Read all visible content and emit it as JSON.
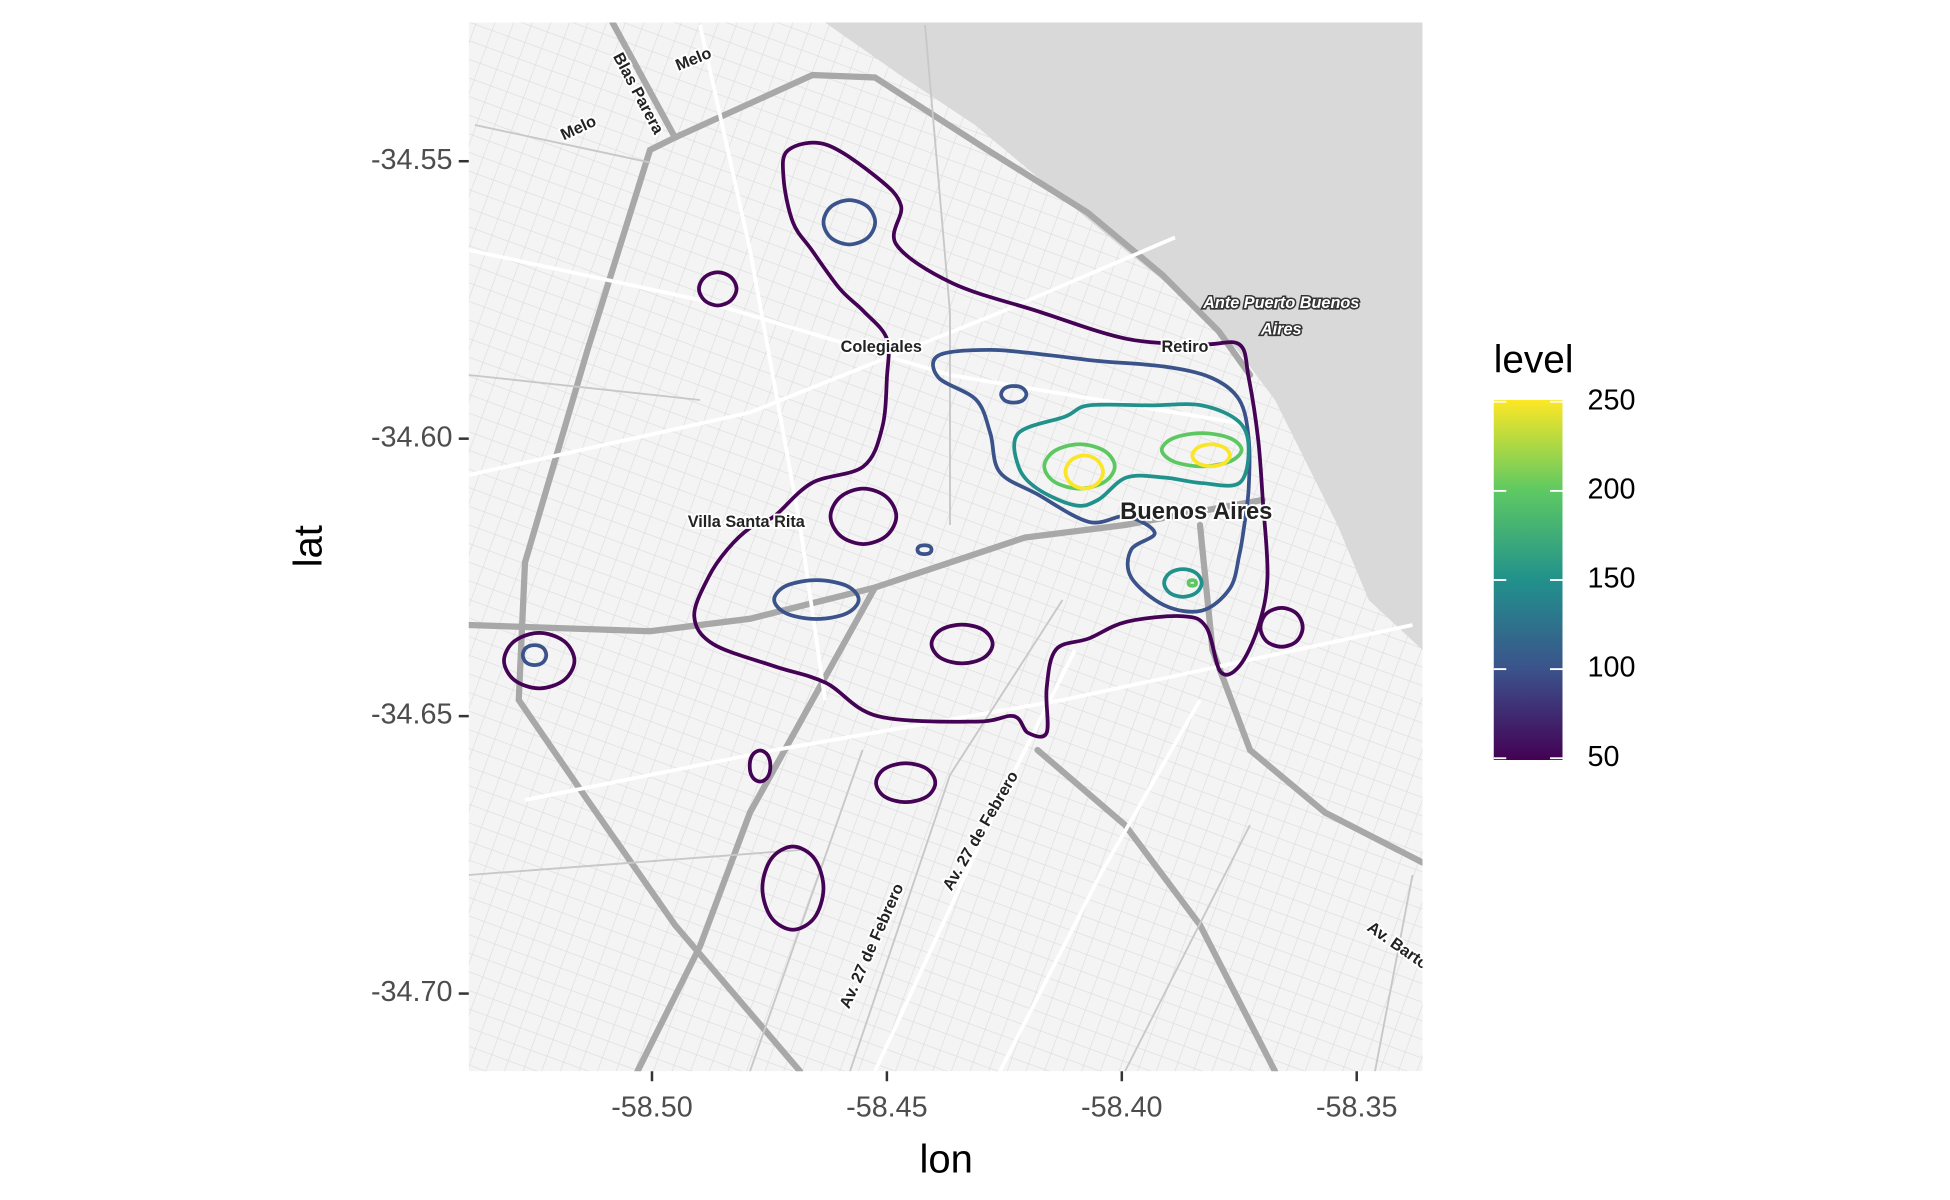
{
  "chart_data": {
    "type": "contour",
    "x_label": "lon",
    "y_label": "lat",
    "xlim": [
      -58.539,
      -58.336
    ],
    "ylim": [
      -34.714,
      -34.525
    ],
    "xticks": [
      {
        "value": -58.5,
        "label": "-58.50"
      },
      -58.45,
      {
        "value": -58.4,
        "label": "-58.40"
      },
      -58.35
    ],
    "yticks": [
      -34.55,
      {
        "value": -34.6,
        "label": "-34.60"
      },
      -34.65,
      {
        "value": -34.7,
        "label": "-34.70"
      }
    ],
    "grid": false,
    "colorbar": {
      "title": "level",
      "limits": [
        49,
        251
      ],
      "ticks": [
        50,
        100,
        150,
        200,
        250
      ],
      "colors": [
        "#440154",
        "#3b528b",
        "#21918c",
        "#5ec962",
        "#fde725"
      ]
    },
    "contours": [
      {
        "level": 50,
        "x": [
          -58.471,
          -58.463,
          -58.452,
          -58.447,
          -58.448,
          -58.436,
          -58.418,
          -58.399,
          -58.383,
          -58.375,
          -58.373,
          -58.371,
          -58.37,
          -58.369,
          -58.371,
          -58.375,
          -58.379,
          -58.382,
          -58.387,
          -58.399,
          -58.407,
          -58.414,
          -58.416,
          -58.416,
          -58.42,
          -58.423,
          -58.431,
          -58.452,
          -58.463,
          -58.474,
          -58.487,
          -58.491,
          -58.488,
          -58.484,
          -58.479,
          -58.474,
          -58.466,
          -58.455,
          -58.451,
          -58.45,
          -58.45,
          -58.455,
          -58.46,
          -58.466,
          -58.47,
          -58.472
        ],
        "y": [
          -34.548,
          -34.547,
          -34.553,
          -34.558,
          -34.565,
          -34.572,
          -34.577,
          -34.582,
          -34.583,
          -34.583,
          -34.589,
          -34.6,
          -34.611,
          -34.625,
          -34.634,
          -34.641,
          -34.642,
          -34.634,
          -34.632,
          -34.633,
          -34.636,
          -34.638,
          -34.645,
          -34.653,
          -34.653,
          -34.65,
          -34.651,
          -34.65,
          -34.644,
          -34.641,
          -34.637,
          -34.632,
          -34.625,
          -34.62,
          -34.616,
          -34.614,
          -34.608,
          -34.605,
          -34.598,
          -34.589,
          -34.582,
          -34.577,
          -34.573,
          -34.566,
          -34.561,
          -34.553
        ]
      },
      {
        "level": 50,
        "x": [
          -58.482,
          -58.4832,
          -58.486,
          -58.4888,
          -58.49,
          -58.4888,
          -58.486,
          -58.4832
        ],
        "y": [
          -34.573,
          -34.5709,
          -34.57,
          -34.5709,
          -34.573,
          -34.5751,
          -34.576,
          -34.5751
        ]
      },
      {
        "level": 50,
        "x": [
          -58.448,
          -58.4501,
          -58.455,
          -58.4599,
          -58.462,
          -58.4599,
          -58.455,
          -58.4501
        ],
        "y": [
          -34.614,
          -34.6105,
          -34.609,
          -34.6105,
          -34.614,
          -34.6175,
          -34.619,
          -34.6175
        ]
      },
      {
        "level": 50,
        "x": [
          -58.4275,
          -58.4294,
          -58.434,
          -58.4386,
          -58.4405,
          -58.4386,
          -58.434,
          -58.4294
        ],
        "y": [
          -34.637,
          -34.6345,
          -34.6335,
          -34.6345,
          -34.637,
          -34.6395,
          -34.6405,
          -34.6395
        ]
      },
      {
        "level": 50,
        "x": [
          -58.5165,
          -58.5187,
          -58.524,
          -58.5293,
          -58.5315,
          -58.5293,
          -58.524,
          -58.5187
        ],
        "y": [
          -34.64,
          -34.6365,
          -34.635,
          -34.6365,
          -34.64,
          -34.6435,
          -34.645,
          -34.6435
        ]
      },
      {
        "level": 50,
        "x": [
          -58.3615,
          -58.3628,
          -58.366,
          -58.3692,
          -58.3705,
          -58.3692,
          -58.366,
          -58.3628
        ],
        "y": [
          -34.634,
          -34.6315,
          -34.6305,
          -34.6315,
          -34.634,
          -34.6365,
          -34.6375,
          -34.6365
        ]
      },
      {
        "level": 50,
        "x": [
          -58.4748,
          -58.4754,
          -58.477,
          -58.4786,
          -58.4792,
          -58.4786,
          -58.477,
          -58.4754
        ],
        "y": [
          -34.659,
          -34.657,
          -34.6562,
          -34.657,
          -34.659,
          -34.661,
          -34.6618,
          -34.661
        ]
      },
      {
        "level": 50,
        "x": [
          -58.4397,
          -58.4415,
          -58.446,
          -58.4505,
          -58.4523,
          -58.4505,
          -58.446,
          -58.4415
        ],
        "y": [
          -34.662,
          -34.6595,
          -34.6585,
          -34.6595,
          -34.662,
          -34.6645,
          -34.6655,
          -34.6645
        ]
      },
      {
        "level": 50,
        "x": [
          -58.4635,
          -58.4654,
          -58.47,
          -58.4746,
          -58.4765,
          -58.4746,
          -58.47,
          -58.4654
        ],
        "y": [
          -34.681,
          -34.6757,
          -34.6735,
          -34.6757,
          -34.681,
          -34.6863,
          -34.6885,
          -34.6863
        ]
      },
      {
        "level": 100,
        "x": [
          -58.439,
          -58.428,
          -58.415,
          -58.405,
          -58.391,
          -58.381,
          -58.375,
          -58.373,
          -58.373,
          -58.374,
          -58.375,
          -58.377,
          -58.383,
          -58.391,
          -58.398,
          -58.398,
          -58.393,
          -58.399,
          -58.407,
          -58.418,
          -58.426,
          -58.428,
          -58.431,
          -58.439
        ],
        "y": [
          -34.585,
          -34.584,
          -34.585,
          -34.586,
          -34.587,
          -34.589,
          -34.593,
          -34.6,
          -34.609,
          -34.616,
          -34.621,
          -34.627,
          -34.631,
          -34.63,
          -34.625,
          -34.62,
          -34.617,
          -34.614,
          -34.615,
          -34.61,
          -34.606,
          -34.599,
          -34.593,
          -34.589
        ]
      },
      {
        "level": 100,
        "x": [
          -58.4525,
          -58.4541,
          -58.458,
          -58.4619,
          -58.4635,
          -58.4619,
          -58.458,
          -58.4541
        ],
        "y": [
          -34.561,
          -34.5582,
          -34.557,
          -34.5582,
          -34.561,
          -34.5638,
          -34.565,
          -34.5638
        ]
      },
      {
        "level": 100,
        "x": [
          -58.4203,
          -58.4211,
          -58.423,
          -58.4249,
          -58.4257,
          -58.4249,
          -58.423,
          -58.4211
        ],
        "y": [
          -34.592,
          -34.5909,
          -34.5905,
          -34.5909,
          -34.592,
          -34.5931,
          -34.5935,
          -34.5931
        ]
      },
      {
        "level": 100,
        "x": [
          -58.4405,
          -58.4409,
          -58.442,
          -58.4431,
          -58.4435,
          -58.4431,
          -58.442,
          -58.4409
        ],
        "y": [
          -34.62,
          -34.6194,
          -34.6192,
          -34.6194,
          -34.62,
          -34.6206,
          -34.6208,
          -34.6206
        ]
      },
      {
        "level": 100,
        "x": [
          -58.456,
          -58.4586,
          -58.465,
          -58.4714,
          -58.474,
          -58.4714,
          -58.465,
          -58.4586
        ],
        "y": [
          -34.629,
          -34.6265,
          -34.6255,
          -34.6265,
          -34.629,
          -34.6315,
          -34.6325,
          -34.6315
        ]
      },
      {
        "level": 100,
        "x": [
          -58.5225,
          -58.5232,
          -58.525,
          -58.5268,
          -58.5275,
          -58.5268,
          -58.525,
          -58.5232
        ],
        "y": [
          -34.639,
          -34.6377,
          -34.6372,
          -34.6377,
          -34.639,
          -34.6403,
          -34.6408,
          -34.6403
        ]
      },
      {
        "level": 150,
        "x": [
          -58.422,
          -58.412,
          -58.407,
          -58.394,
          -58.383,
          -58.375,
          -58.373,
          -58.375,
          -58.383,
          -58.391,
          -58.399,
          -58.405,
          -58.41,
          -58.418,
          -58.422
        ],
        "y": [
          -34.599,
          -34.596,
          -34.594,
          -34.594,
          -34.594,
          -34.597,
          -34.602,
          -34.608,
          -34.608,
          -34.607,
          -34.607,
          -34.611,
          -34.612,
          -34.609,
          -34.605
        ]
      },
      {
        "level": 150,
        "x": [
          -58.383,
          -58.3842,
          -58.387,
          -58.3898,
          -58.391,
          -58.3898,
          -58.387,
          -58.3842
        ],
        "y": [
          -34.626,
          -34.6242,
          -34.6235,
          -34.6242,
          -34.626,
          -34.6278,
          -34.6285,
          -34.6278
        ]
      },
      {
        "level": 200,
        "x": [
          -58.4015,
          -58.4037,
          -58.409,
          -58.4143,
          -58.4165,
          -58.4143,
          -58.409,
          -58.4037
        ],
        "y": [
          -34.605,
          -34.6022,
          -34.601,
          -34.6022,
          -34.605,
          -34.6078,
          -34.609,
          -34.6078
        ]
      },
      {
        "level": 200,
        "x": [
          -58.3745,
          -58.377,
          -58.383,
          -58.389,
          -58.3915,
          -58.389,
          -58.383,
          -58.377
        ],
        "y": [
          -34.602,
          -34.5999,
          -34.599,
          -34.5999,
          -34.602,
          -34.6041,
          -34.605,
          -34.6041
        ]
      },
      {
        "level": 200,
        "x": [
          -58.3842,
          -58.3844,
          -58.385,
          -58.3856,
          -58.3858,
          -58.3856,
          -58.385,
          -58.3844
        ],
        "y": [
          -34.626,
          -34.6256,
          -34.6255,
          -34.6256,
          -34.626,
          -34.6264,
          -34.6265,
          -34.6264
        ]
      },
      {
        "level": 250,
        "x": [
          -58.404,
          -58.4052,
          -58.408,
          -58.4108,
          -58.412,
          -58.4108,
          -58.408,
          -58.4052
        ],
        "y": [
          -34.606,
          -34.6039,
          -34.603,
          -34.6039,
          -34.606,
          -34.6081,
          -34.609,
          -34.6081
        ]
      },
      {
        "level": 250,
        "x": [
          -58.377,
          -58.3782,
          -58.381,
          -58.3838,
          -58.385,
          -58.3838,
          -58.381,
          -58.3782
        ],
        "y": [
          -34.603,
          -34.6016,
          -34.601,
          -34.6016,
          -34.603,
          -34.6044,
          -34.605,
          -34.6044
        ]
      }
    ],
    "map_labels": [
      "Melo",
      "Melo",
      "Blas Parera",
      "Colegiales",
      "Retiro",
      "Ante Puerto Buenos",
      "Aires",
      "Villa Santa Rita",
      "Buenos Aires",
      "Av. 27 de Febrero",
      "Av. 27 de Febrero",
      "Av. Barto"
    ]
  }
}
